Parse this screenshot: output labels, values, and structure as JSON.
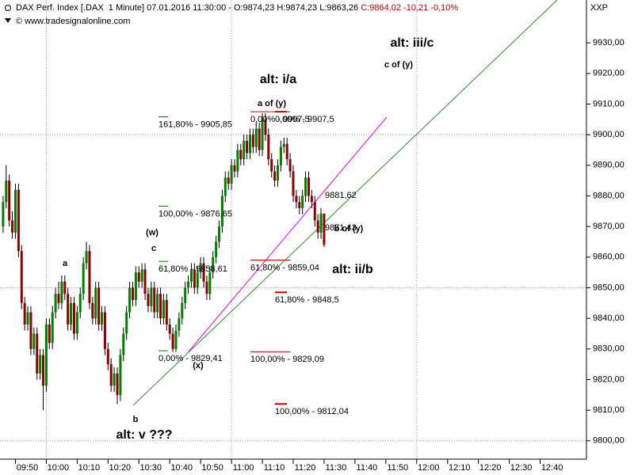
{
  "chart_data": {
    "type": "candlestick",
    "header": {
      "text": "DAX Perf. Index [.DAX  1 Minute] 07.01.2016 11:30:00 - O:9874,23 H:9874,23 L:9863,26",
      "change": "C:9864,02 -10,21 -0,10%",
      "change_color": "#cc0000",
      "source": "© www.tradesignalonline.com"
    },
    "axis_label": "XXP",
    "up_color": "#008000",
    "down_color": "#8b0000",
    "wick_color": "#000000",
    "grid": true,
    "xlim": [
      "09:45",
      "12:55"
    ],
    "xticks": [
      "09:50",
      "10:00",
      "10:10",
      "10:20",
      "10:30",
      "10:40",
      "10:50",
      "11:00",
      "11:10",
      "11:20",
      "11:30",
      "11:40",
      "11:50",
      "12:00",
      "12:10",
      "12:20",
      "12:30",
      "12:40"
    ],
    "ylim": [
      9794,
      9944
    ],
    "yticks": [
      {
        "value": 9800,
        "label": "9800,00"
      },
      {
        "value": 9810,
        "label": "9810,00"
      },
      {
        "value": 9820,
        "label": "9820,00"
      },
      {
        "value": 9830,
        "label": "9830,00"
      },
      {
        "value": 9840,
        "label": "9840,00"
      },
      {
        "value": 9850,
        "label": "9850,00"
      },
      {
        "value": 9860,
        "label": "9860,00"
      },
      {
        "value": 9870,
        "label": "9870,00"
      },
      {
        "value": 9880,
        "label": "9880,00"
      },
      {
        "value": 9890,
        "label": "9890,00"
      },
      {
        "value": 9900,
        "label": "9900,00"
      },
      {
        "value": 9910,
        "label": "9910,00"
      },
      {
        "value": 9920,
        "label": "9920,00"
      },
      {
        "value": 9930,
        "label": "9930,00"
      }
    ],
    "x": [
      "09:46",
      "09:47",
      "09:48",
      "09:49",
      "09:50",
      "09:51",
      "09:52",
      "09:53",
      "09:54",
      "09:55",
      "09:56",
      "09:57",
      "09:58",
      "09:59",
      "10:00",
      "10:01",
      "10:02",
      "10:03",
      "10:04",
      "10:05",
      "10:06",
      "10:07",
      "10:08",
      "10:09",
      "10:10",
      "10:11",
      "10:12",
      "10:13",
      "10:14",
      "10:15",
      "10:16",
      "10:17",
      "10:18",
      "10:19",
      "10:20",
      "10:21",
      "10:22",
      "10:23",
      "10:24",
      "10:25",
      "10:26",
      "10:27",
      "10:28",
      "10:29",
      "10:30",
      "10:31",
      "10:32",
      "10:33",
      "10:34",
      "10:35",
      "10:36",
      "10:37",
      "10:38",
      "10:39",
      "10:40",
      "10:41",
      "10:42",
      "10:43",
      "10:44",
      "10:45",
      "10:46",
      "10:47",
      "10:48",
      "10:49",
      "10:50",
      "10:51",
      "10:52",
      "10:53",
      "10:54",
      "10:55",
      "10:56",
      "10:57",
      "10:58",
      "10:59",
      "11:00",
      "11:01",
      "11:02",
      "11:03",
      "11:04",
      "11:05",
      "11:06",
      "11:07",
      "11:08",
      "11:09",
      "11:10",
      "11:11",
      "11:12",
      "11:13",
      "11:14",
      "11:15",
      "11:16",
      "11:17",
      "11:18",
      "11:19",
      "11:20",
      "11:21",
      "11:22",
      "11:23",
      "11:24",
      "11:25",
      "11:26",
      "11:27",
      "11:28",
      "11:29",
      "11:30"
    ],
    "open": [
      9870,
      9878,
      9885,
      9872,
      9868,
      9882,
      9862,
      9845,
      9838,
      9842,
      9830,
      9835,
      9822,
      9828,
      9818,
      9838,
      9832,
      9842,
      9848,
      9845,
      9852,
      9848,
      9838,
      9845,
      9835,
      9842,
      9848,
      9858,
      9862,
      9845,
      9840,
      9850,
      9838,
      9842,
      9830,
      9825,
      9818,
      9822,
      9815,
      9828,
      9835,
      9842,
      9850,
      9846,
      9855,
      9852,
      9856,
      9848,
      9844,
      9850,
      9842,
      9848,
      9840,
      9846,
      9838,
      9835,
      9830,
      9836,
      9840,
      9845,
      9850,
      9852,
      9856,
      9850,
      9855,
      9858,
      9852,
      9848,
      9855,
      9860,
      9865,
      9870,
      9880,
      9886,
      9884,
      9890,
      9888,
      9895,
      9892,
      9898,
      9894,
      9900,
      9896,
      9902,
      9895,
      9905,
      9900,
      9892,
      9888,
      9885,
      9890,
      9896,
      9897,
      9892,
      9888,
      9880,
      9878,
      9876,
      9880,
      9886,
      9880,
      9878,
      9872,
      9868,
      9874.23
    ],
    "high": [
      9880,
      9890,
      9887,
      9875,
      9884,
      9884,
      9864,
      9847,
      9844,
      9844,
      9837,
      9837,
      9830,
      9830,
      9840,
      9840,
      9844,
      9850,
      9852,
      9854,
      9854,
      9850,
      9847,
      9847,
      9844,
      9850,
      9860,
      9865,
      9864,
      9847,
      9852,
      9852,
      9844,
      9844,
      9832,
      9827,
      9824,
      9824,
      9830,
      9837,
      9844,
      9852,
      9852,
      9857,
      9857,
      9858,
      9858,
      9850,
      9852,
      9852,
      9850,
      9850,
      9848,
      9848,
      9840,
      9837,
      9838,
      9842,
      9847,
      9852,
      9854,
      9858,
      9858,
      9857,
      9860,
      9860,
      9854,
      9857,
      9862,
      9867,
      9872,
      9882,
      9888,
      9888,
      9892,
      9892,
      9897,
      9897,
      9900,
      9900,
      9902,
      9902,
      9904,
      9904,
      9907,
      9907,
      9902,
      9894,
      9890,
      9892,
      9898,
      9899,
      9899,
      9894,
      9890,
      9882,
      9880,
      9882,
      9888,
      9888,
      9882,
      9880,
      9874,
      9876,
      9874.23
    ],
    "low": [
      9868,
      9876,
      9870,
      9866,
      9866,
      9860,
      9843,
      9836,
      9836,
      9828,
      9828,
      9820,
      9820,
      9810,
      9816,
      9830,
      9830,
      9840,
      9843,
      9843,
      9846,
      9836,
      9836,
      9833,
      9833,
      9840,
      9846,
      9856,
      9843,
      9838,
      9838,
      9836,
      9836,
      9828,
      9823,
      9816,
      9816,
      9812,
      9813,
      9826,
      9833,
      9840,
      9844,
      9844,
      9850,
      9850,
      9846,
      9842,
      9842,
      9840,
      9840,
      9838,
      9838,
      9836,
      9833,
      9829,
      9829,
      9834,
      9838,
      9843,
      9848,
      9850,
      9848,
      9848,
      9853,
      9850,
      9846,
      9846,
      9853,
      9858,
      9863,
      9868,
      9878,
      9882,
      9882,
      9886,
      9886,
      9890,
      9890,
      9892,
      9892,
      9894,
      9894,
      9893,
      9893,
      9898,
      9890,
      9886,
      9883,
      9883,
      9888,
      9894,
      9890,
      9886,
      9878,
      9876,
      9874,
      9874,
      9878,
      9878,
      9876,
      9870,
      9866,
      9866,
      9863.26
    ],
    "close": [
      9878,
      9885,
      9872,
      9868,
      9882,
      9862,
      9845,
      9838,
      9842,
      9830,
      9835,
      9822,
      9828,
      9818,
      9838,
      9832,
      9842,
      9848,
      9845,
      9852,
      9848,
      9838,
      9845,
      9835,
      9842,
      9848,
      9858,
      9862,
      9845,
      9840,
      9850,
      9838,
      9842,
      9830,
      9825,
      9818,
      9822,
      9815,
      9828,
      9835,
      9842,
      9850,
      9846,
      9855,
      9852,
      9856,
      9848,
      9844,
      9850,
      9842,
      9848,
      9840,
      9846,
      9838,
      9835,
      9830,
      9836,
      9840,
      9845,
      9850,
      9852,
      9856,
      9850,
      9855,
      9858,
      9852,
      9848,
      9855,
      9860,
      9865,
      9870,
      9880,
      9886,
      9884,
      9890,
      9888,
      9895,
      9892,
      9898,
      9894,
      9900,
      9896,
      9902,
      9895,
      9905,
      9900,
      9892,
      9888,
      9885,
      9890,
      9896,
      9897,
      9892,
      9888,
      9880,
      9878,
      9876,
      9880,
      9886,
      9880,
      9878,
      9872,
      9868,
      9874.23,
      9864.02
    ],
    "fib_levels": [
      {
        "label": "161,80% - 9905,85",
        "value": 9905.85,
        "color": "#008000"
      },
      {
        "label": "100,00% - 9876,65",
        "value": 9876.65,
        "color": "#008000"
      },
      {
        "label": "61,80% - 9858,61",
        "value": 9858.61,
        "color": "#008000"
      },
      {
        "label": "0,00% - 9829,41",
        "value": 9829.41,
        "color": "#008000"
      },
      {
        "label": "0,00% - 9907,5",
        "value": 9907.5,
        "color": "#cc0000"
      },
      {
        "label": "61,80% - 9859,04",
        "value": 9859.04,
        "color": "#cc0000"
      },
      {
        "label": "100,00% - 9829,09",
        "value": 9829.09,
        "color": "#cc0000"
      },
      {
        "label": "0,00% - 9907,5",
        "value": 9907.5,
        "color": "#cc0000"
      },
      {
        "label": "61,80% - 9848,5",
        "value": 9848.5,
        "color": "#cc0000"
      },
      {
        "label": "100,00% - 9812,04",
        "value": 9812.04,
        "color": "#cc0000"
      }
    ],
    "price_tags": [
      {
        "text": "9881,62",
        "color": "#cc00cc"
      },
      {
        "text": "9871,43",
        "color": "#006400"
      }
    ],
    "wave_labels": {
      "color": "#ee00ee",
      "texts": [
        "a",
        "(w)",
        "c",
        "b",
        "(x)",
        "a of (y)",
        "b of (y)",
        "c of (y)"
      ]
    },
    "scenario_labels": {
      "color": "#9a1fb8",
      "texts": [
        "alt: i/a",
        "alt: iii/c",
        "alt: ii/b",
        "alt: v ???"
      ]
    }
  }
}
